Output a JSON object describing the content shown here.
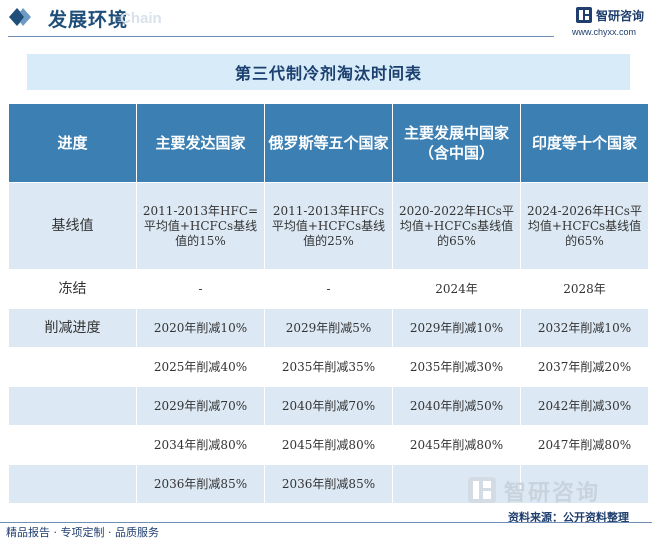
{
  "header": {
    "title": "发展环境",
    "watermark": "Chain",
    "brand": "智研咨询",
    "url": "www.chyxx.com"
  },
  "table_title": "第三代制冷剂淘汰时间表",
  "table": {
    "columns": [
      "进度",
      "主要发达国家",
      "俄罗斯等五个国家",
      "主要发展中国家（含中国）",
      "印度等十个国家"
    ],
    "rows": [
      {
        "label": "基线值",
        "cells": [
          "2011-2013年HFC=平均值+HCFCs基线值的15%",
          "2011-2013年HFCs平均值+HCFCs基线值的25%",
          "2020-2022年HCs平均值+HCFCs基线值的65%",
          "2024-2026年HCs平均值+HCFCs基线值的65%"
        ]
      },
      {
        "label": "冻结",
        "cells": [
          "-",
          "-",
          "2024年",
          "2028年"
        ]
      },
      {
        "label": "削减进度",
        "cells": [
          "2020年削减10%",
          "2029年削减5%",
          "2029年削减10%",
          "2032年削减10%"
        ]
      },
      {
        "label": "",
        "cells": [
          "2025年削减40%",
          "2035年削减35%",
          "2035年削减30%",
          "2037年削减20%"
        ]
      },
      {
        "label": "",
        "cells": [
          "2029年削减70%",
          "2040年削减70%",
          "2040年削减50%",
          "2042年削减30%"
        ]
      },
      {
        "label": "",
        "cells": [
          "2034年削减80%",
          "2045年削减80%",
          "2045年削减80%",
          "2047年削减80%"
        ]
      },
      {
        "label": "",
        "cells": [
          "2036年削减85%",
          "2036年削减85%",
          "",
          ""
        ]
      }
    ]
  },
  "footer": {
    "left": "精品报告 · 专项定制 · 品质服务",
    "source": "资料来源：公开资料整理",
    "watermark_text": "智研咨询"
  },
  "colors": {
    "header_blue": "#3b7fb3",
    "band_light": "#d7ebf8",
    "row_shade": "#dce9f4",
    "brand_navy": "#1f3e6e"
  }
}
